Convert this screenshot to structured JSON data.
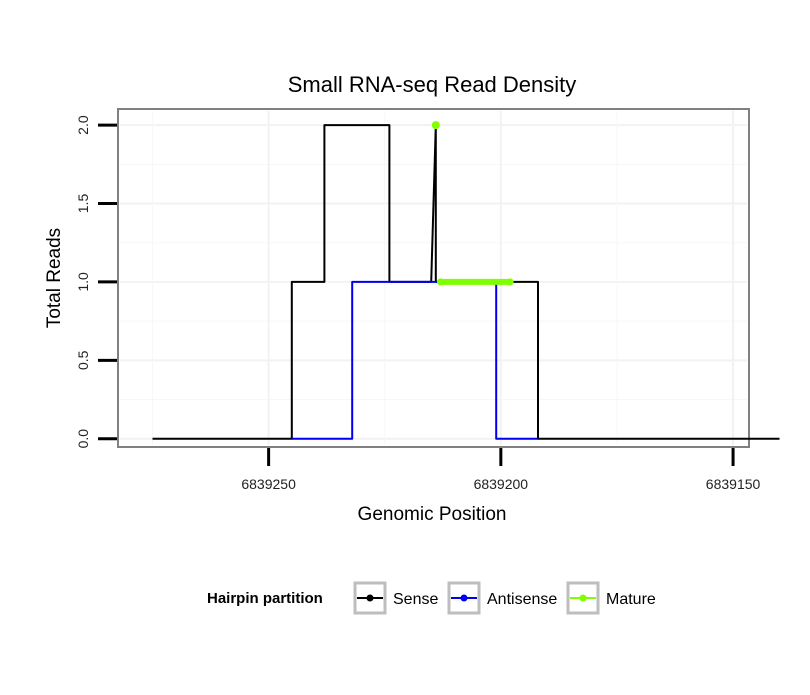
{
  "chart_data": {
    "type": "line",
    "title": "Small RNA-seq Read Density",
    "xlabel": "Genomic Position",
    "ylabel": "Total Reads",
    "x_reversed": true,
    "xlim": [
      6839282,
      6839147
    ],
    "ylim": [
      -0.04,
      2.09
    ],
    "x_ticks": [
      6839250,
      6839200,
      6839150
    ],
    "x_tick_labels": [
      "6839250",
      "6839200",
      "6839150"
    ],
    "y_ticks": [
      0,
      0.5,
      1,
      1.5,
      2
    ],
    "y_tick_labels": [
      "0.0",
      "0.5",
      "1.0",
      "1.5",
      "2.0"
    ],
    "grid": true,
    "legend": {
      "position": "bottom",
      "title": "Hairpin partition",
      "entries": [
        "Sense",
        "Antisense",
        "Mature"
      ]
    },
    "series": [
      {
        "name": "Sense",
        "color": "#000000",
        "x": [
          6839275,
          6839245,
          6839245,
          6839238,
          6839238,
          6839224,
          6839224,
          6839215,
          6839215,
          6839214,
          6839214,
          6839192,
          6839192,
          6839140
        ],
        "y": [
          0,
          0,
          1,
          1,
          2,
          2,
          1,
          1,
          1,
          2,
          1,
          1,
          0,
          0
        ]
      },
      {
        "name": "Antisense",
        "color": "#0000ee",
        "x": [
          6839245,
          6839232,
          6839232,
          6839201,
          6839201,
          6839192
        ],
        "y": [
          0,
          0,
          1,
          1,
          0,
          0
        ]
      },
      {
        "name": "Mature",
        "color": "#7fff00",
        "segments": [
          {
            "x": [
              6839213,
              6839198
            ],
            "y": [
              1,
              1
            ]
          }
        ],
        "points": [
          {
            "x": 6839214,
            "y": 2
          }
        ]
      }
    ]
  }
}
